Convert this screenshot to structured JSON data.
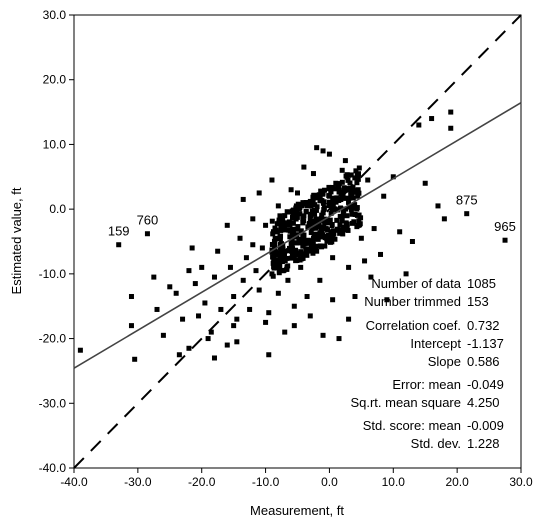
{
  "chart_data": {
    "type": "scatter",
    "xlabel": "Measurement, ft",
    "ylabel": "Estimated value, ft",
    "xlim": [
      -40,
      30
    ],
    "ylim": [
      -40,
      30
    ],
    "x_ticks": [
      -40,
      -30,
      -20,
      -10,
      0,
      10,
      20,
      30
    ],
    "y_ticks": [
      -40,
      -30,
      -20,
      -10,
      0,
      10,
      20,
      30
    ],
    "x_tick_labels": [
      "-40.0",
      "-30.0",
      "-20.0",
      "-10.0",
      "0.0",
      "10.0",
      "20.0",
      "30.0"
    ],
    "y_tick_labels": [
      "-40.0",
      "-30.0",
      "-20.0",
      "-10.0",
      "0.0",
      "10.0",
      "20.0",
      "30.0"
    ],
    "grid": false,
    "reference_line": {
      "style": "dashed",
      "slope": 1,
      "intercept": 0
    },
    "regression_line": {
      "style": "solid",
      "slope": 0.586,
      "intercept": -1.137
    },
    "annotations": [
      {
        "label": "159",
        "x": -33.0,
        "y": -5.5
      },
      {
        "label": "760",
        "x": -28.5,
        "y": -3.8
      },
      {
        "label": "875",
        "x": 21.5,
        "y": -0.7
      },
      {
        "label": "965",
        "x": 27.5,
        "y": -4.8
      }
    ],
    "stats": [
      {
        "label": "Number of data",
        "value": "1085"
      },
      {
        "label": "Number trimmed",
        "value": "153"
      },
      {
        "label": "Correlation coef.",
        "value": "0.732"
      },
      {
        "label": "Intercept",
        "value": "-1.137"
      },
      {
        "label": "Slope",
        "value": "0.586"
      },
      {
        "label": "Error: mean",
        "value": "-0.049"
      },
      {
        "label": "Sq.rt. mean square",
        "value": "4.250"
      },
      {
        "label": "Std. score: mean",
        "value": "-0.009"
      },
      {
        "label": "Std. dev.",
        "value": "1.228"
      }
    ],
    "points": [
      [
        -39.0,
        -21.8
      ],
      [
        -33.0,
        -5.5
      ],
      [
        -28.5,
        -3.8
      ],
      [
        -31.0,
        -13.5
      ],
      [
        -31.0,
        -18.0
      ],
      [
        -30.5,
        -23.2
      ],
      [
        -27.0,
        -15.5
      ],
      [
        -26.0,
        -19.5
      ],
      [
        -24.0,
        -13.0
      ],
      [
        -23.5,
        -22.5
      ],
      [
        -23.0,
        -17.0
      ],
      [
        -22.0,
        -21.5
      ],
      [
        -21.5,
        -6.0
      ],
      [
        -21.0,
        -11.5
      ],
      [
        -20.0,
        -9.0
      ],
      [
        -19.5,
        -14.5
      ],
      [
        -18.5,
        -19.0
      ],
      [
        -18.0,
        -10.5
      ],
      [
        -17.5,
        -6.5
      ],
      [
        -17.0,
        -15.5
      ],
      [
        -16.0,
        -21.0
      ],
      [
        -15.5,
        -9.0
      ],
      [
        -15.0,
        -13.5
      ],
      [
        -14.5,
        -17.0
      ],
      [
        -14.0,
        -4.5
      ],
      [
        -13.5,
        -11.0
      ],
      [
        -13.0,
        -7.5
      ],
      [
        -12.5,
        -15.5
      ],
      [
        -12.0,
        -1.5
      ],
      [
        -11.5,
        -9.5
      ],
      [
        -11.0,
        -12.5
      ],
      [
        -10.5,
        -6.0
      ],
      [
        -10.0,
        -17.5
      ],
      [
        -9.5,
        -22.5
      ],
      [
        -9.0,
        -10.0
      ],
      [
        -8.5,
        -4.5
      ],
      [
        -8.0,
        -13.0
      ],
      [
        -7.5,
        -8.0
      ],
      [
        -7.0,
        -1.0
      ],
      [
        -6.5,
        -11.0
      ],
      [
        -6.0,
        -6.5
      ],
      [
        -5.5,
        -15.0
      ],
      [
        -5.0,
        2.5
      ],
      [
        -4.5,
        -9.0
      ],
      [
        -4.0,
        -4.0
      ],
      [
        -3.5,
        -13.5
      ],
      [
        -3.0,
        -1.5
      ],
      [
        -2.5,
        5.5
      ],
      [
        -2.0,
        -6.5
      ],
      [
        -1.5,
        -11.0
      ],
      [
        -1.0,
        9.0
      ],
      [
        -0.5,
        -3.0
      ],
      [
        0.0,
        2.0
      ],
      [
        0.5,
        -7.5
      ],
      [
        1.0,
        4.0
      ],
      [
        1.5,
        -20.0
      ],
      [
        2.0,
        -3.5
      ],
      [
        2.5,
        7.5
      ],
      [
        3.0,
        -9.0
      ],
      [
        3.5,
        0.5
      ],
      [
        4.0,
        -13.5
      ],
      [
        4.5,
        3.0
      ],
      [
        5.0,
        -4.5
      ],
      [
        5.5,
        -8.0
      ],
      [
        6.0,
        4.5
      ],
      [
        7.0,
        -3.0
      ],
      [
        8.0,
        -7.0
      ],
      [
        9.0,
        -14.0
      ],
      [
        10.0,
        5.0
      ],
      [
        11.0,
        -3.5
      ],
      [
        12.0,
        -10.0
      ],
      [
        13.0,
        -5.0
      ],
      [
        14.0,
        13.0
      ],
      [
        15.0,
        4.0
      ],
      [
        16.0,
        14.0
      ],
      [
        17.0,
        0.5
      ],
      [
        18.0,
        -1.5
      ],
      [
        19.0,
        15.0
      ],
      [
        19.0,
        12.5
      ],
      [
        21.5,
        -0.7
      ],
      [
        27.5,
        -4.8
      ],
      [
        -25.0,
        -12.0
      ],
      [
        -20.5,
        -16.5
      ],
      [
        -18.0,
        -23.0
      ],
      [
        -14.5,
        -20.5
      ],
      [
        -9.5,
        -16.0
      ],
      [
        -7.0,
        -19.0
      ],
      [
        -5.5,
        -18.0
      ],
      [
        -3.0,
        -16.5
      ],
      [
        0.5,
        -14.0
      ],
      [
        -12.0,
        -5.5
      ],
      [
        -10.0,
        -2.5
      ],
      [
        -8.0,
        0.5
      ],
      [
        -6.0,
        3.0
      ],
      [
        -4.0,
        6.5
      ],
      [
        -2.0,
        9.5
      ],
      [
        0.0,
        8.5
      ],
      [
        2.0,
        6.0
      ],
      [
        -16.0,
        -2.5
      ],
      [
        -13.5,
        1.5
      ],
      [
        -11.0,
        2.5
      ],
      [
        -9.0,
        4.5
      ],
      [
        6.5,
        -10.5
      ],
      [
        8.5,
        2.0
      ],
      [
        -22.0,
        -9.5
      ],
      [
        -27.5,
        -10.5
      ],
      [
        -19.0,
        -20.0
      ],
      [
        -1.0,
        -19.5
      ],
      [
        3.0,
        -17.0
      ],
      [
        -15.0,
        -18.0
      ]
    ]
  }
}
